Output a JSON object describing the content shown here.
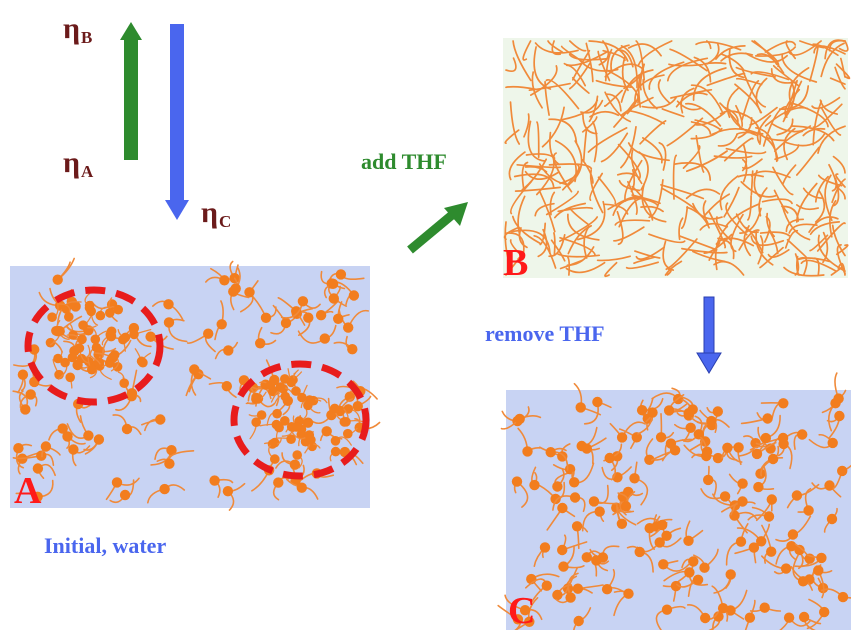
{
  "viscosity": {
    "eta_a": {
      "symbol": "η",
      "subscript": "A"
    },
    "eta_b": {
      "symbol": "η",
      "subscript": "B"
    },
    "eta_c": {
      "symbol": "η",
      "subscript": "C"
    }
  },
  "steps": {
    "add": "add THF",
    "remove": "remove THF"
  },
  "panels": {
    "a": {
      "letter": "A",
      "caption": "Initial, water"
    },
    "b": {
      "letter": "B"
    },
    "c": {
      "letter": "C"
    }
  },
  "colors": {
    "eta_text": "#6b1a1a",
    "panel_letter": "#ff1a1a",
    "add_arrow": "#2e8b2e",
    "remove_arrow": "#4a66ee",
    "panel_water_bg": "#c8d3f3",
    "panel_thf_bg": "#eef6ea",
    "polymer_chain": "#f08a3a",
    "polymer_bead": "#f27d1e",
    "cluster_outline": "#e81c1c"
  }
}
